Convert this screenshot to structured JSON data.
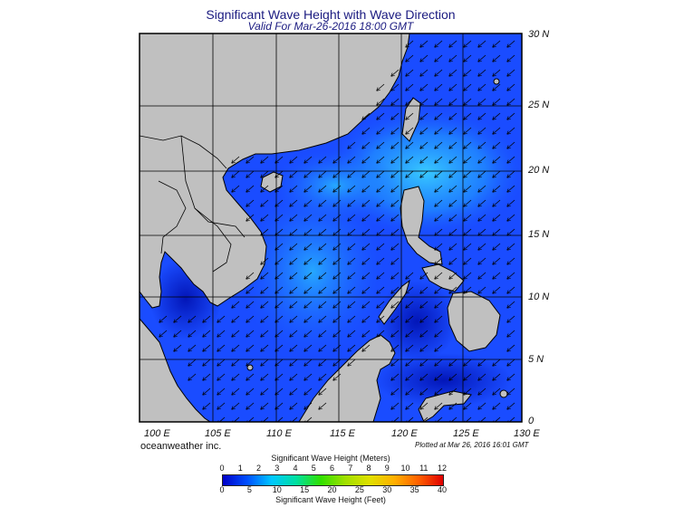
{
  "title": "Significant Wave Height with Wave Direction",
  "subtitle": "Valid For Mar-26-2016 18:00 GMT",
  "credit": "oceanweather inc.",
  "plotted": "Plotted at Mar 26, 2016 16:01 GMT",
  "lat_labels": [
    "30 N",
    "25 N",
    "20 N",
    "15 N",
    "10 N",
    "5 N",
    "0"
  ],
  "lon_labels": [
    "100 E",
    "105 E",
    "110 E",
    "115 E",
    "120 E",
    "125 E",
    "130 E"
  ],
  "colorbar": {
    "meters_title": "Significant Wave Height (Meters)",
    "feet_title": "Significant Wave Height (Feet)",
    "meters_ticks": [
      "0",
      "1",
      "2",
      "3",
      "4",
      "5",
      "6",
      "7",
      "8",
      "9",
      "10",
      "11",
      "12"
    ],
    "feet_ticks": [
      "0",
      "5",
      "10",
      "15",
      "20",
      "25",
      "30",
      "35",
      "40"
    ],
    "colors": [
      "#0000c8",
      "#0050ff",
      "#00c8ff",
      "#00e0a0",
      "#30e000",
      "#a0e000",
      "#e0e000",
      "#ffb000",
      "#ff6000",
      "#e00000"
    ]
  },
  "colors": {
    "land": "#c0c0c0",
    "ocean_base": "#1a4cff",
    "title": "#1a1a80"
  },
  "icons": [
    "wave-direction-arrow-icon"
  ]
}
